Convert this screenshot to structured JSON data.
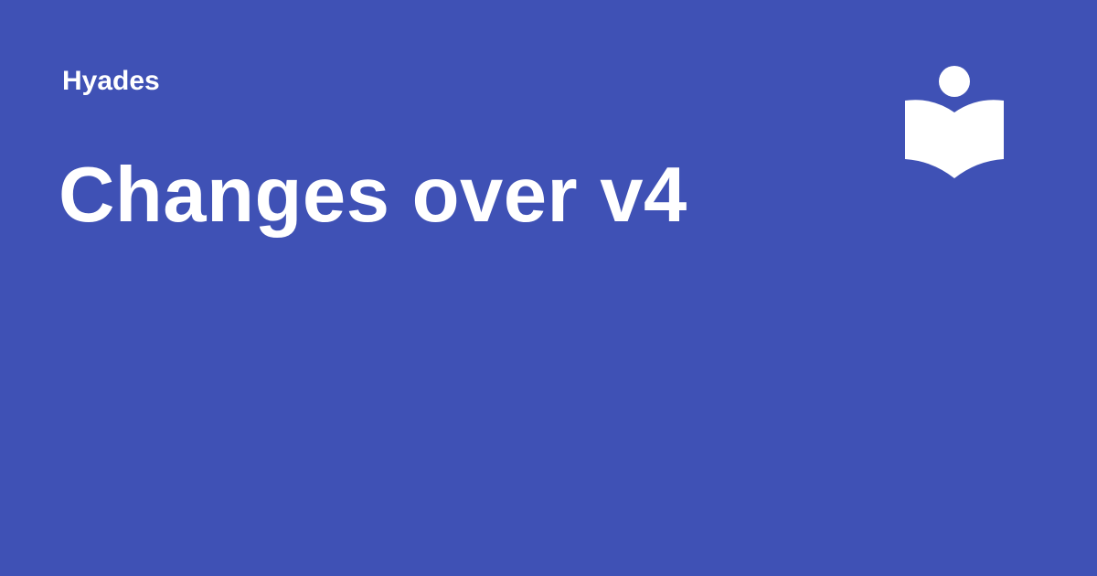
{
  "header": {
    "site_name": "Hyades",
    "title": "Changes over v4"
  },
  "theme": {
    "background": "#3f51b5",
    "foreground": "#ffffff"
  },
  "logo": {
    "icon": "book-reader-icon"
  }
}
